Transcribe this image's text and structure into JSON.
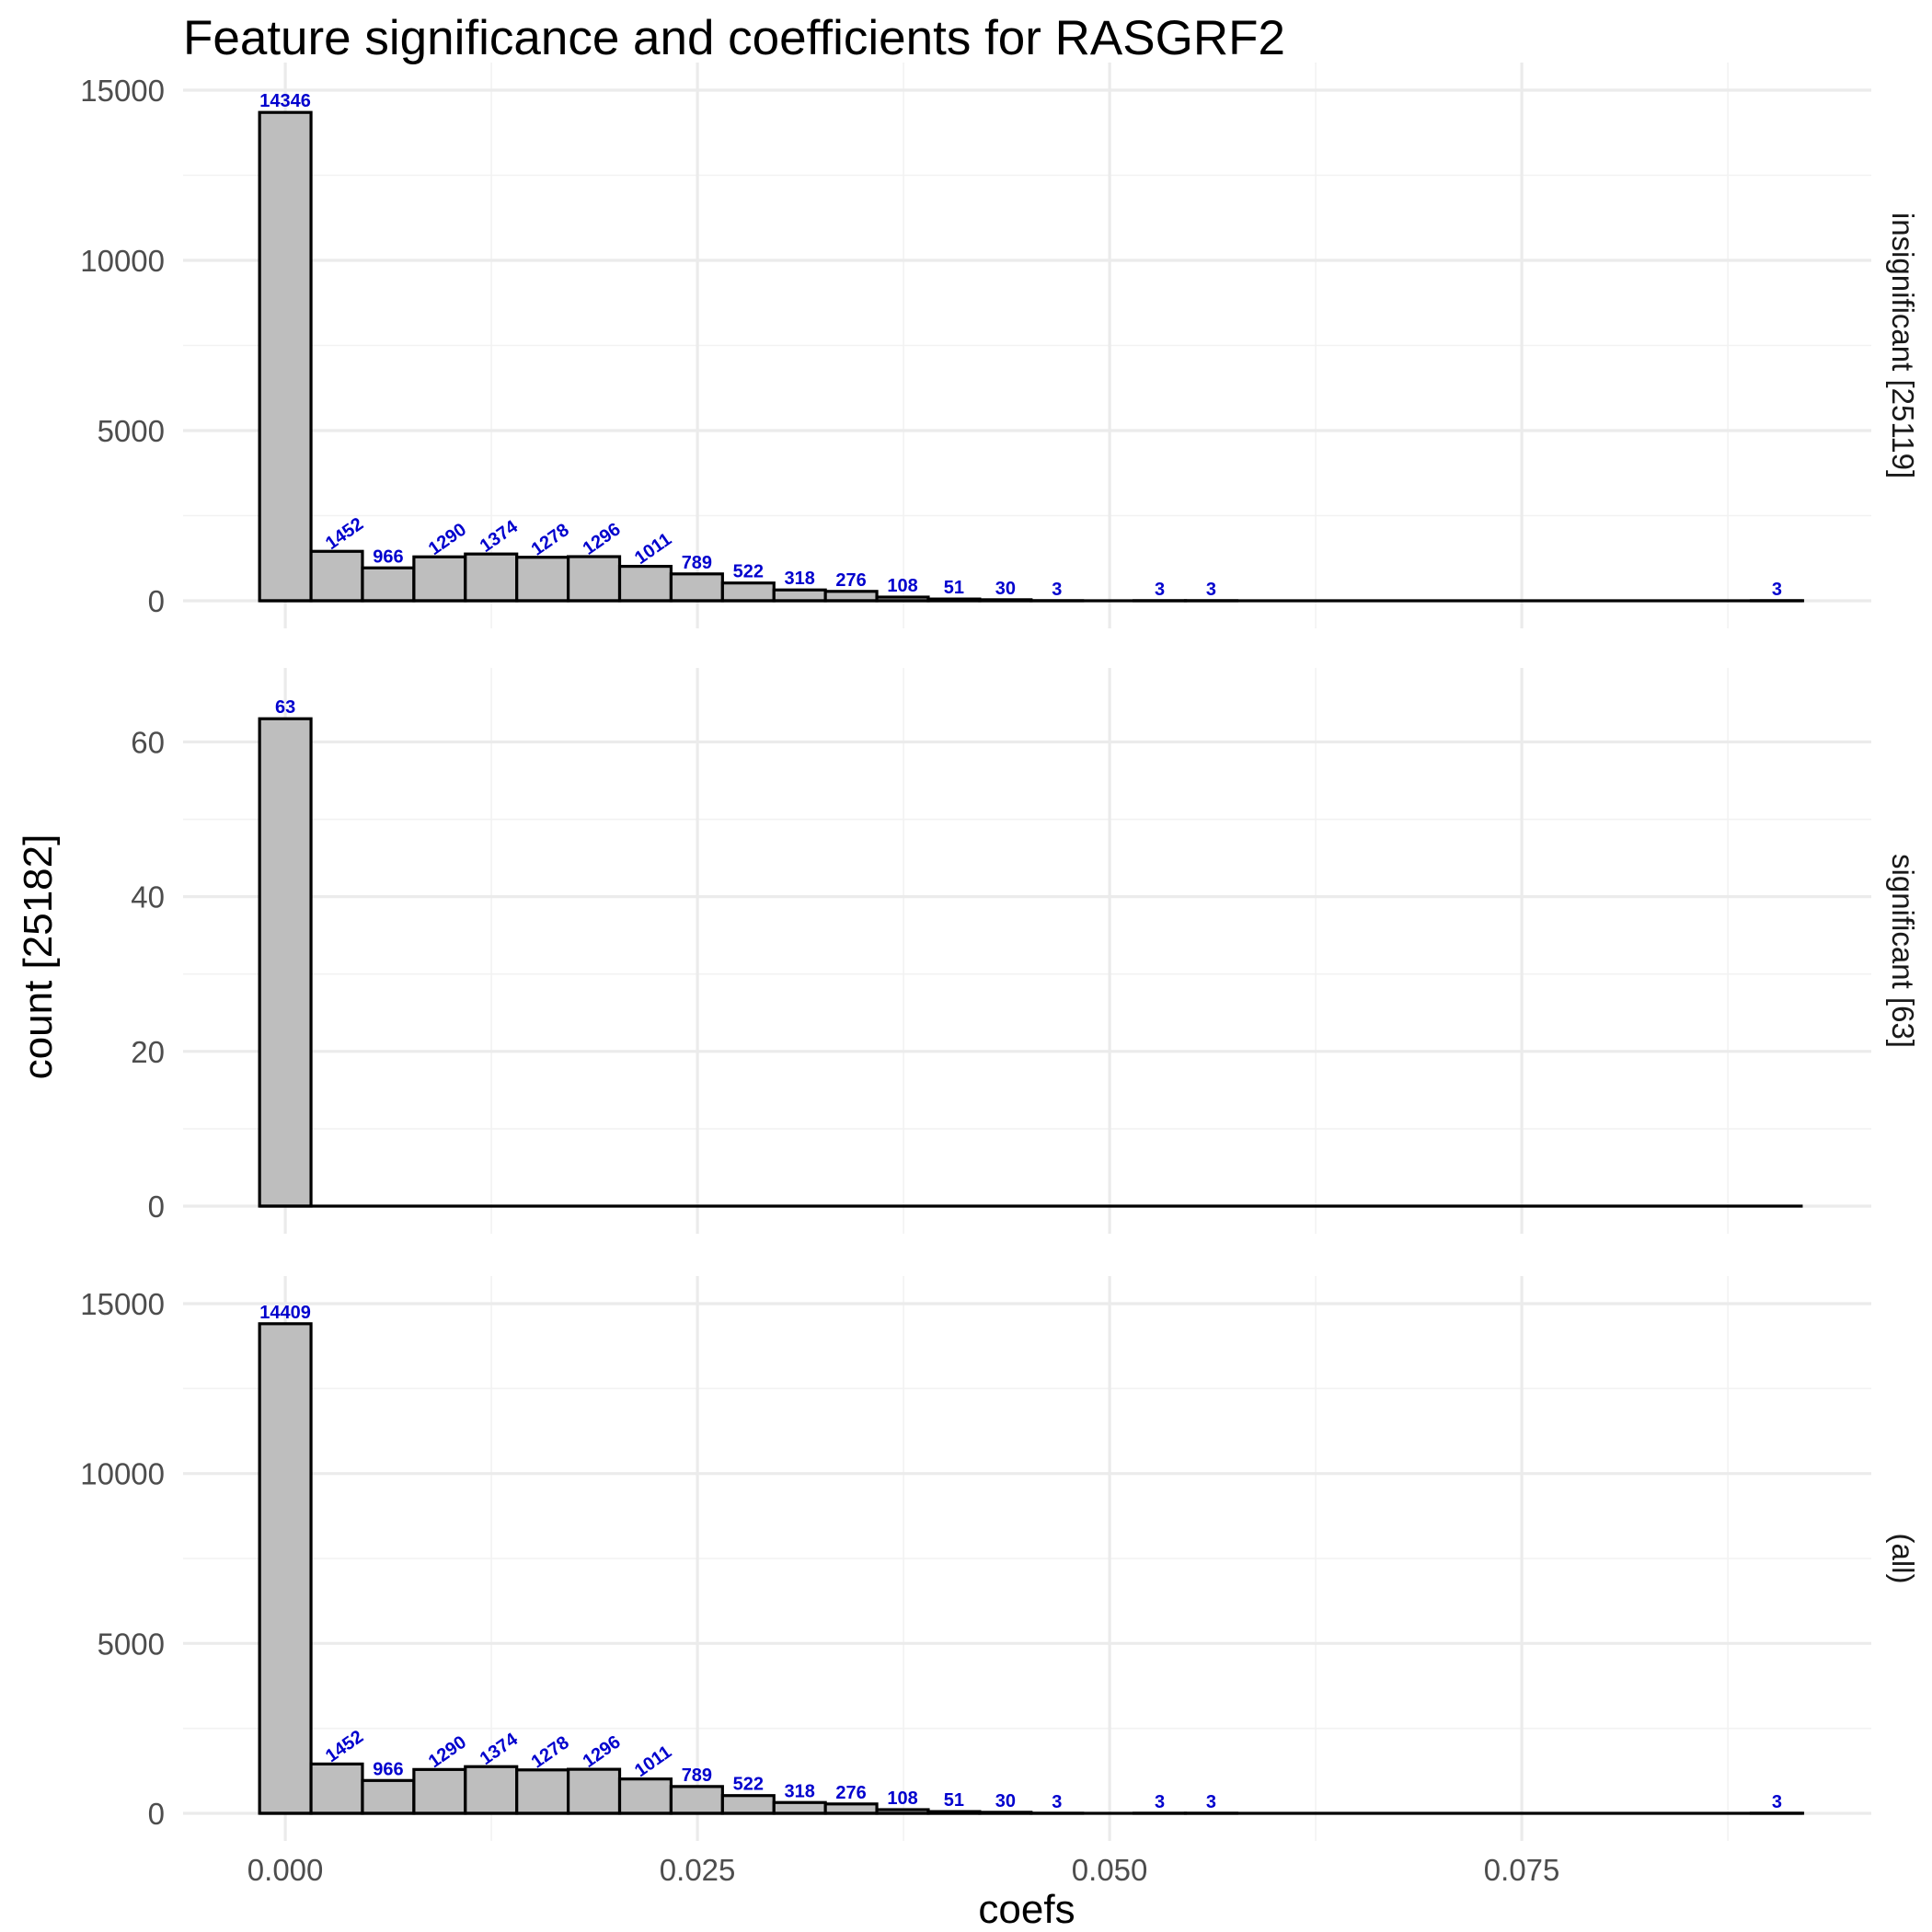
{
  "chart_data": {
    "type": "bar",
    "title": "Feature significance and coefficients for RASGRF2",
    "xlabel": "coefs",
    "ylabel": "count [25182]",
    "xlim": [
      -0.0062,
      0.0962
    ],
    "x_ticks": [
      0.0,
      0.025,
      0.05,
      0.075
    ],
    "x_tick_labels": [
      "0.000",
      "0.025",
      "0.050",
      "0.075"
    ],
    "bins": {
      "centers": [
        0.0,
        0.00312,
        0.00624,
        0.00936,
        0.01248,
        0.0156,
        0.01872,
        0.02184,
        0.02496,
        0.02808,
        0.0312,
        0.03432,
        0.03744,
        0.04056,
        0.04368,
        0.0468,
        0.04992,
        0.05304,
        0.05616,
        0.05928,
        0.0624,
        0.06552,
        0.06864,
        0.07176,
        0.07488,
        0.078,
        0.08112,
        0.08424,
        0.08736,
        0.09048
      ],
      "width": 0.00312
    },
    "label_angle_threshold": 1000,
    "grid": true,
    "legend": "none",
    "colors": {
      "bar_fill": "#bebebe",
      "bar_stroke": "#000000",
      "label": "#0000cd"
    },
    "panels": [
      {
        "strip": "insignificant [25119]",
        "ylim": [
          0,
          15000
        ],
        "y_ticks": [
          0,
          5000,
          10000,
          15000
        ],
        "y_tick_labels": [
          "0",
          "5000",
          "10000",
          "15000"
        ],
        "values": [
          14346,
          1452,
          966,
          1290,
          1374,
          1278,
          1296,
          1011,
          789,
          522,
          318,
          276,
          108,
          51,
          30,
          3,
          0,
          3,
          3,
          0,
          0,
          0,
          0,
          0,
          0,
          0,
          0,
          0,
          0,
          3
        ],
        "labels": [
          "14346",
          "1452",
          "966",
          "1290",
          "1374",
          "1278",
          "1296",
          "1011",
          "789",
          "522",
          "318",
          "276",
          "108",
          "51",
          "30",
          "3",
          "",
          "3",
          "3",
          "",
          "",
          "",
          "",
          "",
          "",
          "",
          "",
          "",
          "",
          "3"
        ]
      },
      {
        "strip": "significant [63]",
        "ylim": [
          0,
          66
        ],
        "y_ticks": [
          0,
          20,
          40,
          60
        ],
        "y_tick_labels": [
          "0",
          "20",
          "40",
          "60"
        ],
        "values": [
          63,
          0,
          0,
          0,
          0,
          0,
          0,
          0,
          0,
          0,
          0,
          0,
          0,
          0,
          0,
          0,
          0,
          0,
          0,
          0,
          0,
          0,
          0,
          0,
          0,
          0,
          0,
          0,
          0,
          0
        ],
        "labels": [
          "63",
          "",
          "",
          "",
          "",
          "",
          "",
          "",
          "",
          "",
          "",
          "",
          "",
          "",
          "",
          "",
          "",
          "",
          "",
          "",
          "",
          "",
          "",
          "",
          "",
          "",
          "",
          "",
          "",
          ""
        ]
      },
      {
        "strip": "(all)",
        "ylim": [
          0,
          15000
        ],
        "y_ticks": [
          0,
          5000,
          10000,
          15000
        ],
        "y_tick_labels": [
          "0",
          "5000",
          "10000",
          "15000"
        ],
        "values": [
          14409,
          1452,
          966,
          1290,
          1374,
          1278,
          1296,
          1011,
          789,
          522,
          318,
          276,
          108,
          51,
          30,
          3,
          0,
          3,
          3,
          0,
          0,
          0,
          0,
          0,
          0,
          0,
          0,
          0,
          0,
          3
        ],
        "labels": [
          "14409",
          "1452",
          "966",
          "1290",
          "1374",
          "1278",
          "1296",
          "1011",
          "789",
          "522",
          "318",
          "276",
          "108",
          "51",
          "30",
          "3",
          "",
          "3",
          "3",
          "",
          "",
          "",
          "",
          "",
          "",
          "",
          "",
          "",
          "",
          "3"
        ]
      }
    ]
  }
}
